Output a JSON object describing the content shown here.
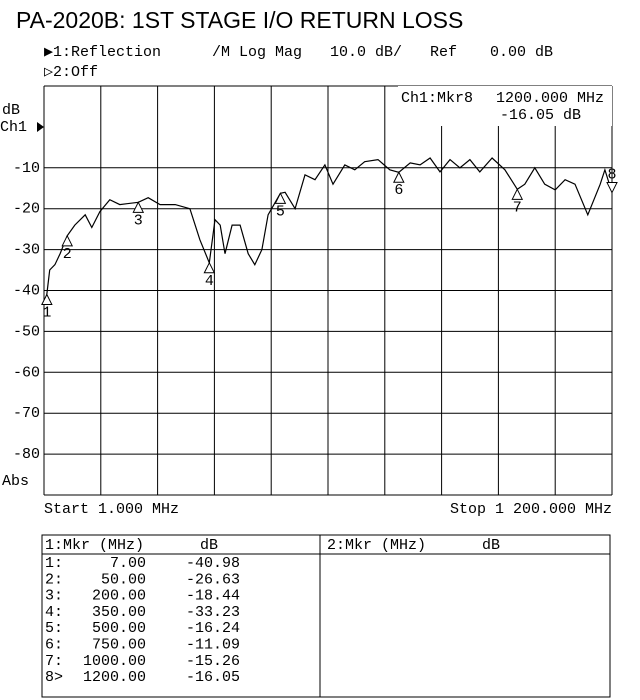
{
  "chart_data": {
    "type": "line",
    "title": "PA-2020B: 1ST STAGE I/O RETURN LOSS",
    "header": {
      "channel1": "▶1:Reflection",
      "format": "/M Log Mag",
      "scale": "10.0 dB/",
      "ref": "Ref",
      "ref_value": "0.00 dB",
      "channel2": "▷2:Off"
    },
    "readout": {
      "marker": "Ch1:Mkr8",
      "frequency": "1200.000 MHz",
      "value": "-16.05 dB"
    },
    "ylabel_top": "dB",
    "channel_label": "Ch1",
    "ylabel_bottom": "Abs",
    "start_label": "Start 1.000 MHz",
    "stop_label": "Stop 1 200.000 MHz",
    "xlim": [
      1,
      1200
    ],
    "ylim": [
      -90,
      10
    ],
    "yticks": [
      -80,
      -70,
      -60,
      -50,
      -40,
      -30,
      -20,
      -10
    ],
    "grid": true,
    "series": [
      {
        "name": "Ch1",
        "color": "#000000",
        "x": [
          1,
          7,
          13,
          24,
          35,
          50,
          66,
          88,
          102,
          119,
          140,
          161,
          200,
          221,
          246,
          278,
          309,
          330,
          350,
          362,
          373,
          383,
          398,
          415,
          432,
          446,
          461,
          474,
          500,
          510,
          531,
          552,
          573,
          594,
          611,
          636,
          657,
          678,
          706,
          731,
          750,
          774,
          795,
          816,
          837,
          858,
          879,
          900,
          921,
          947,
          974,
          1000,
          1016,
          1037,
          1058,
          1080,
          1101,
          1122,
          1149,
          1175,
          1185,
          1200
        ],
        "values": [
          -43.4,
          -40.98,
          -35,
          -33.7,
          -31,
          -26.63,
          -24,
          -21.5,
          -24.6,
          -20.7,
          -17.8,
          -19,
          -18.44,
          -17.3,
          -19,
          -19,
          -20,
          -27.6,
          -33.23,
          -22.7,
          -24,
          -31,
          -24,
          -24,
          -31,
          -33.7,
          -30,
          -21.5,
          -16.24,
          -16,
          -20,
          -11.7,
          -12.9,
          -9.3,
          -14,
          -9.3,
          -10.5,
          -8.5,
          -8,
          -10.5,
          -11.09,
          -8.8,
          -9.3,
          -7.6,
          -11,
          -8,
          -10,
          -8,
          -11,
          -7.6,
          -10.5,
          -15.26,
          -14,
          -10,
          -14,
          -15.4,
          -12.9,
          -14,
          -21.5,
          -14,
          -10.5,
          -16.05
        ]
      }
    ],
    "markers": {
      "labels": [
        "1",
        "2",
        "3",
        "4",
        "5",
        "6",
        "7",
        "8"
      ],
      "x": [
        7,
        50,
        200,
        350,
        500,
        750,
        1000,
        1200
      ],
      "values": [
        -40.98,
        -26.63,
        -18.44,
        -33.23,
        -16.24,
        -11.09,
        -15.26,
        -16.05
      ]
    }
  },
  "table": {
    "left_header": [
      "1:Mkr (MHz)",
      "dB"
    ],
    "right_header": [
      "2:Mkr (MHz)",
      "dB"
    ],
    "rows": [
      [
        "1:",
        "7.00",
        "-40.98"
      ],
      [
        "2:",
        "50.00",
        "-26.63"
      ],
      [
        "3:",
        "200.00",
        "-18.44"
      ],
      [
        "4:",
        "350.00",
        "-33.23"
      ],
      [
        "5:",
        "500.00",
        "-16.24"
      ],
      [
        "6:",
        "750.00",
        "-11.09"
      ],
      [
        "7:",
        "1000.00",
        "-15.26"
      ],
      [
        "8>",
        "1200.00",
        "-16.05"
      ]
    ]
  }
}
